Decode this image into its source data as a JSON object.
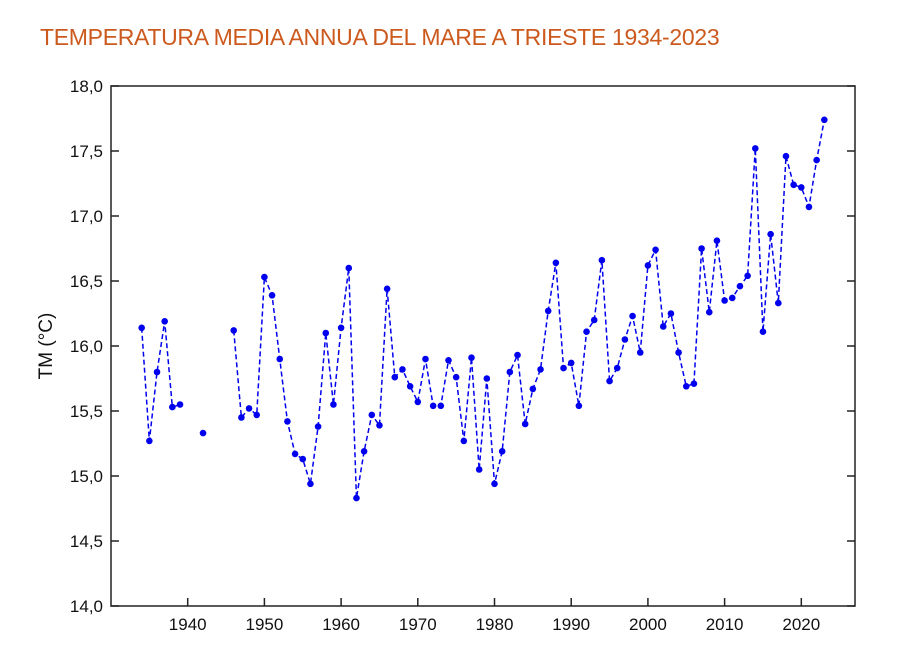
{
  "chart_data": {
    "type": "line",
    "title": "TEMPERATURA MEDIA ANNUA DEL MARE A TRIESTE 1934-2023",
    "xlabel": "",
    "ylabel": "TM (°C)",
    "xlim": [
      1930,
      2027
    ],
    "ylim": [
      14.0,
      18.0
    ],
    "xticks": [
      1940,
      1950,
      1960,
      1970,
      1980,
      1990,
      2000,
      2010,
      2020
    ],
    "xtick_labels": [
      "1940",
      "1950",
      "1960",
      "1970",
      "1980",
      "1990",
      "2000",
      "2010",
      "2020"
    ],
    "yticks": [
      14.0,
      14.5,
      15.0,
      15.5,
      16.0,
      16.5,
      17.0,
      17.5,
      18.0
    ],
    "ytick_labels": [
      "14,0",
      "14,5",
      "15,0",
      "15,5",
      "16,0",
      "16,5",
      "17,0",
      "17,5",
      "18,0"
    ],
    "grid": false,
    "color": "#0000ee",
    "line_style": "dashed",
    "marker": "circle",
    "title_color": "#cc5a1e",
    "x": [
      1934,
      1935,
      1936,
      1937,
      1938,
      1939,
      1940,
      1941,
      1942,
      1943,
      1944,
      1945,
      1946,
      1947,
      1948,
      1949,
      1950,
      1951,
      1952,
      1953,
      1954,
      1955,
      1956,
      1957,
      1958,
      1959,
      1960,
      1961,
      1962,
      1963,
      1964,
      1965,
      1966,
      1967,
      1968,
      1969,
      1970,
      1971,
      1972,
      1973,
      1974,
      1975,
      1976,
      1977,
      1978,
      1979,
      1980,
      1981,
      1982,
      1983,
      1984,
      1985,
      1986,
      1987,
      1988,
      1989,
      1990,
      1991,
      1992,
      1993,
      1994,
      1995,
      1996,
      1997,
      1998,
      1999,
      2000,
      2001,
      2002,
      2003,
      2004,
      2005,
      2006,
      2007,
      2008,
      2009,
      2010,
      2011,
      2012,
      2013,
      2014,
      2015,
      2016,
      2017,
      2018,
      2019,
      2020,
      2021,
      2022,
      2023
    ],
    "y": [
      16.14,
      15.27,
      15.8,
      16.19,
      15.53,
      15.55,
      null,
      null,
      15.33,
      null,
      null,
      null,
      16.12,
      15.45,
      15.52,
      15.47,
      16.53,
      16.39,
      15.9,
      15.42,
      15.17,
      15.13,
      14.94,
      15.38,
      16.1,
      15.55,
      16.14,
      16.6,
      14.83,
      15.19,
      15.47,
      15.39,
      16.44,
      15.76,
      15.82,
      15.69,
      15.57,
      15.9,
      15.54,
      15.54,
      15.89,
      15.76,
      15.27,
      15.91,
      15.05,
      15.75,
      14.94,
      15.19,
      15.8,
      15.93,
      15.4,
      15.67,
      15.82,
      16.27,
      16.64,
      15.83,
      15.87,
      15.54,
      16.11,
      16.2,
      16.66,
      15.73,
      15.83,
      16.05,
      16.23,
      15.95,
      16.62,
      16.74,
      16.15,
      16.25,
      15.95,
      15.69,
      15.71,
      16.75,
      16.26,
      16.81,
      16.35,
      16.37,
      16.46,
      16.54,
      17.52,
      16.11,
      16.86,
      16.33,
      17.46,
      17.24,
      17.22,
      17.07,
      17.43,
      17.74
    ]
  }
}
